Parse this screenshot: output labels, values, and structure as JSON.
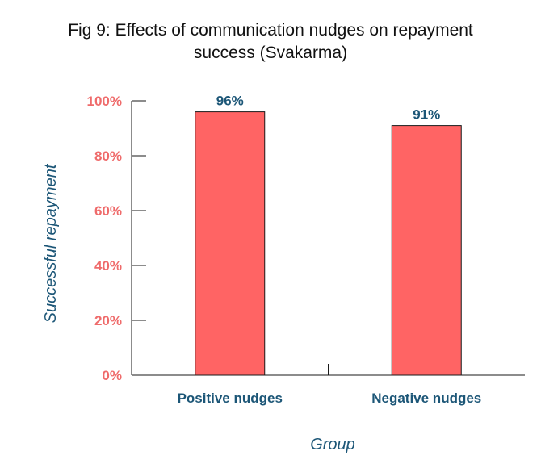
{
  "chart_data": {
    "type": "bar",
    "title_lines": [
      "Fig 9: Effects of communication nudges on repayment",
      "success (Svakarma)"
    ],
    "categories": [
      "Positive nudges",
      "Negative nudges"
    ],
    "values": [
      96,
      91
    ],
    "value_labels": [
      "96%",
      "91%"
    ],
    "xlabel": "Group",
    "ylabel": "Successful repayment",
    "ylim": [
      0,
      100
    ],
    "yticks": [
      0,
      20,
      40,
      60,
      80,
      100
    ],
    "ytick_labels": [
      "0%",
      "20%",
      "40%",
      "60%",
      "80%",
      "100%"
    ],
    "grid": false,
    "legend": "none"
  },
  "colors": {
    "bar": "#ff6464",
    "bar_edge": "#1a1a1a",
    "tick_label": "#ef6b6b",
    "accent_text": "#1c5677",
    "axis": "#1a1a1a"
  }
}
